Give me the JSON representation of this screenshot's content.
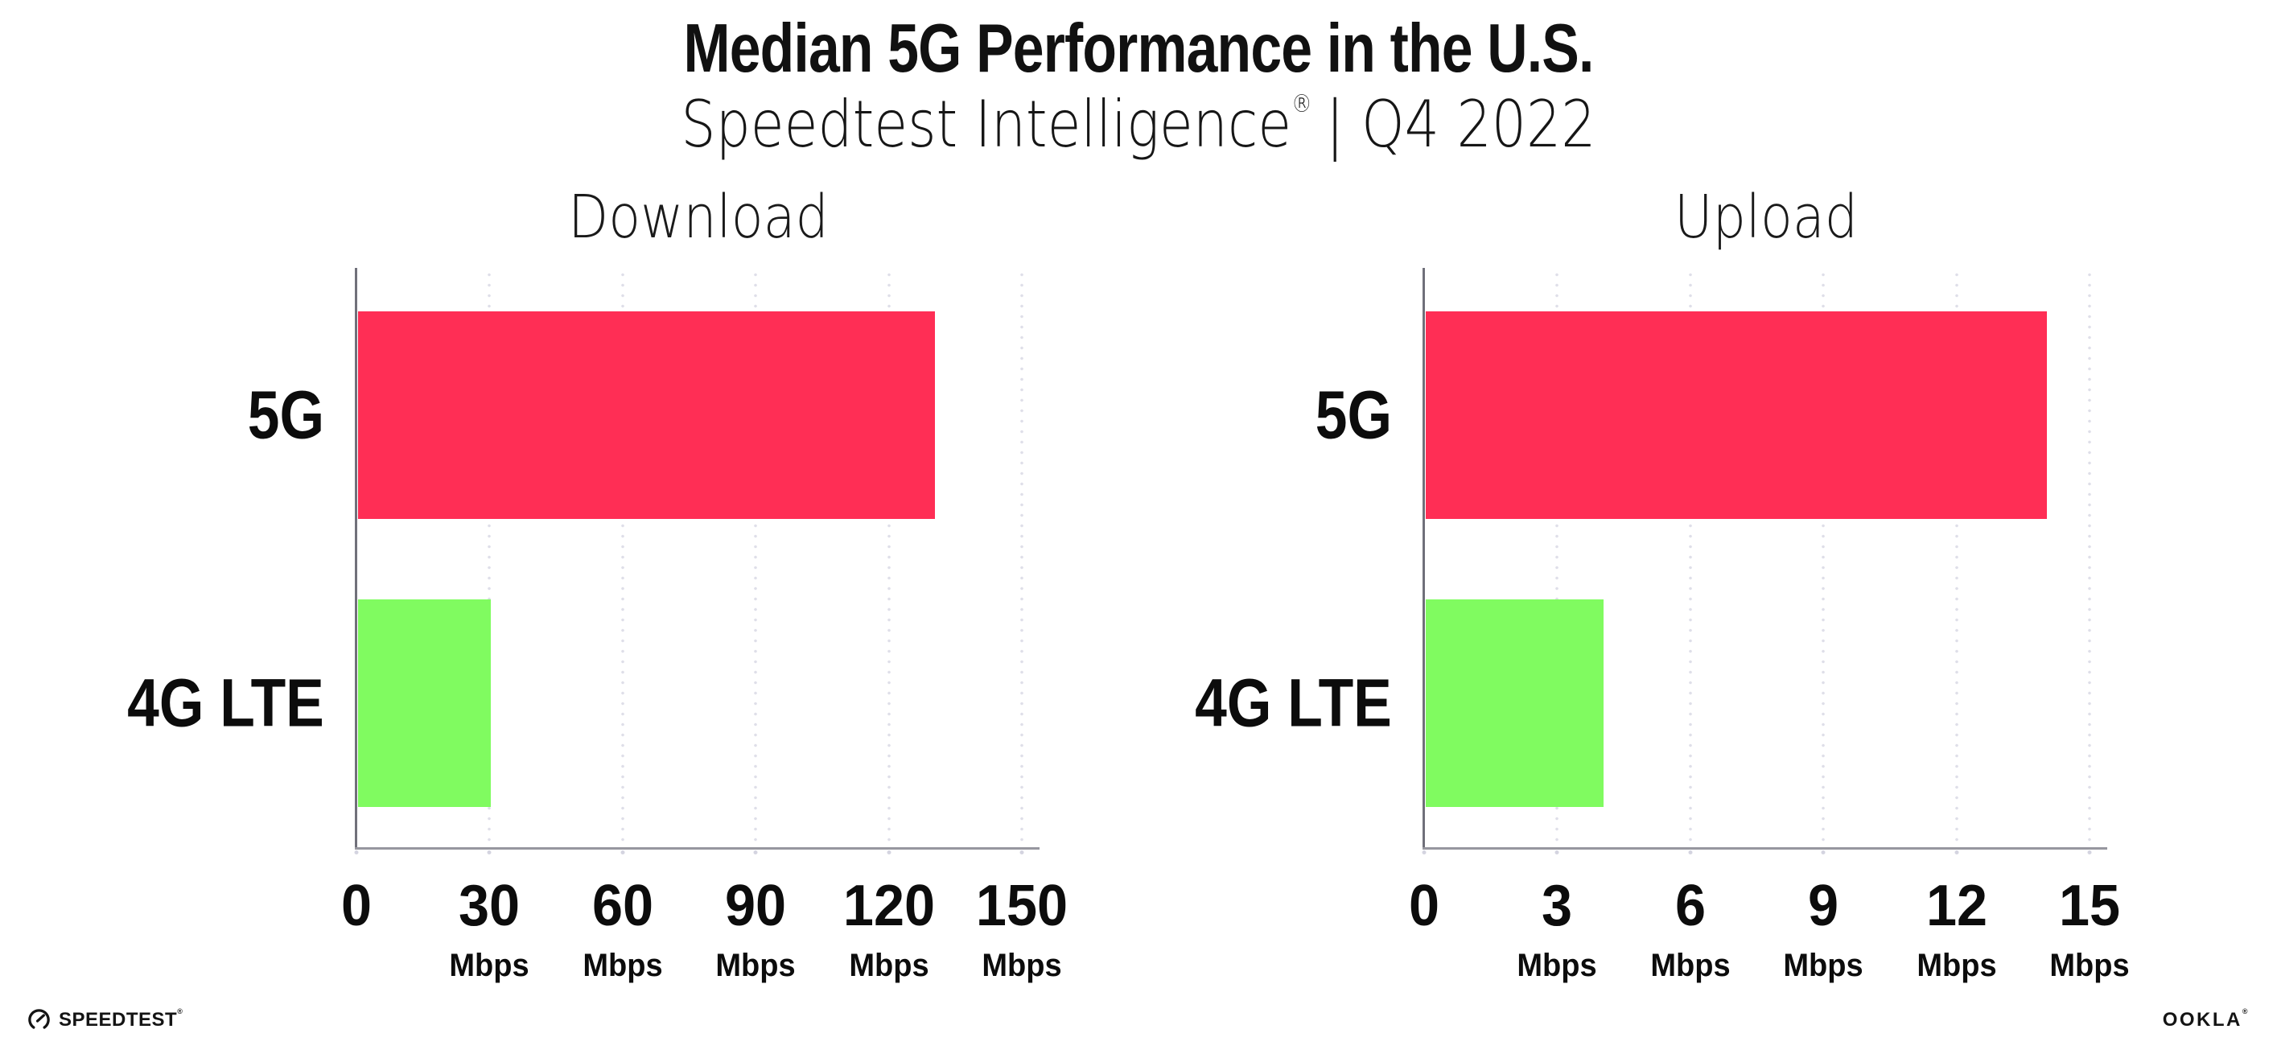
{
  "header": {
    "title": "Median 5G Performance in the U.S.",
    "subtitle_brand": "Speedtest Intelligence",
    "subtitle_mark": "®",
    "subtitle_rest": "| Q4 2022"
  },
  "footer": {
    "speedtest_label": "SPEEDTEST",
    "speedtest_mark": "®",
    "ookla_label": "OOKLA",
    "ookla_mark": "®"
  },
  "colors": {
    "bar_5g_pink": "#FF2E55",
    "bar_4g_green": "#80FB60",
    "y_axis": "#70707a",
    "x_axis": "#97979f",
    "gridline_dots": "#dfdfe9",
    "text": "#111111"
  },
  "chart_data": [
    {
      "type": "bar",
      "orientation": "horizontal",
      "title": "Download",
      "categories": [
        "5G",
        "4G LTE"
      ],
      "values": [
        130,
        30
      ],
      "unit": "Mbps",
      "xlabel": "",
      "ylabel": "",
      "xlim": [
        0,
        150
      ],
      "xticks": [
        0,
        30,
        60,
        90,
        120,
        150
      ],
      "grid": "dotted-vertical",
      "legend": "none",
      "bar_colors": [
        "#FF2E55",
        "#80FB60"
      ]
    },
    {
      "type": "bar",
      "orientation": "horizontal",
      "title": "Upload",
      "categories": [
        "5G",
        "4G LTE"
      ],
      "values": [
        14,
        4
      ],
      "unit": "Mbps",
      "xlabel": "",
      "ylabel": "",
      "xlim": [
        0,
        15
      ],
      "xticks": [
        0,
        3,
        6,
        9,
        12,
        15
      ],
      "grid": "dotted-vertical",
      "legend": "none",
      "bar_colors": [
        "#FF2E55",
        "#80FB60"
      ]
    }
  ]
}
